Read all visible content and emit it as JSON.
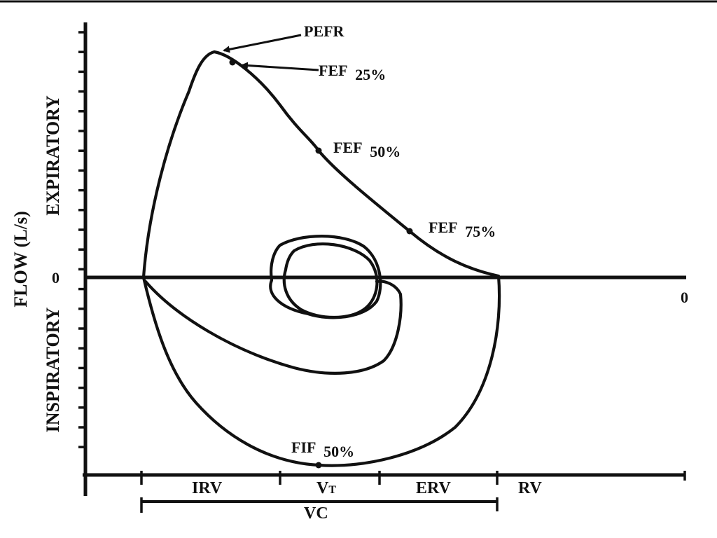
{
  "diagram": {
    "axis": {
      "y_title": "FLOW (L/s)",
      "expiratory_label": "EXPIRATORY",
      "inspiratory_label": "INSPIRATORY",
      "zero_y_label": "0",
      "zero_x_label": "0"
    },
    "points": {
      "pefr": "PEFR",
      "fef25": {
        "name": "FEF",
        "pct": "25%"
      },
      "fef50": {
        "name": "FEF",
        "pct": "50%"
      },
      "fef75": {
        "name": "FEF",
        "pct": "75%"
      },
      "fif50": {
        "name": "FIF",
        "pct": "50%"
      }
    },
    "volumes": {
      "irv": "IRV",
      "vt_main": "V",
      "vt_sub": "T",
      "erv": "ERV",
      "rv": "RV",
      "vc": "VC"
    },
    "colors": {
      "ink": "#111111",
      "background": "#ffffff"
    }
  }
}
